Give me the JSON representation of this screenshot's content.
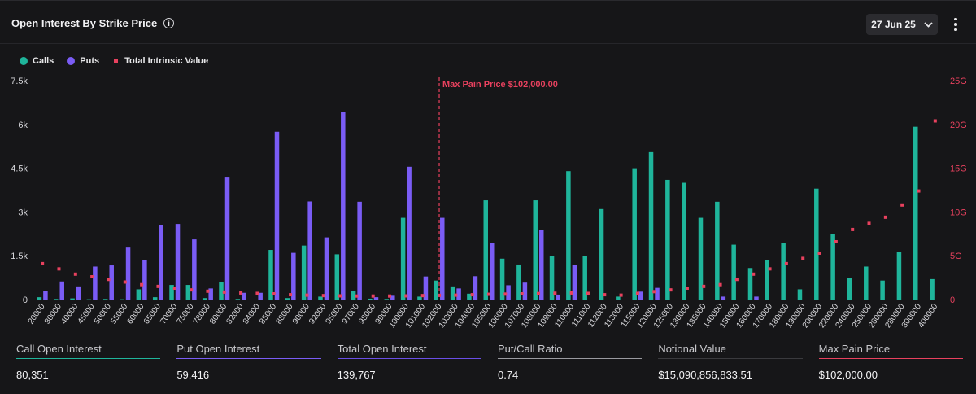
{
  "header": {
    "title": "Open Interest By Strike Price",
    "date_label": "27 Jun 25"
  },
  "legend": [
    {
      "label": "Calls",
      "color": "#1fb59b"
    },
    {
      "label": "Puts",
      "color": "#7a5cf5"
    },
    {
      "label": "Total Intrinsic Value",
      "color": "#e8415e"
    }
  ],
  "stats": [
    {
      "label": "Call Open Interest",
      "value": "80,351",
      "color": "#1fb59b"
    },
    {
      "label": "Put Open Interest",
      "value": "59,416",
      "color": "#7a5cf5"
    },
    {
      "label": "Total Open Interest",
      "value": "139,767",
      "color": "#6a4ee6"
    },
    {
      "label": "Put/Call Ratio",
      "value": "0.74",
      "color": "#9a9aa0"
    },
    {
      "label": "Notional Value",
      "value": "$15,090,856,833.51",
      "color": "#3a3a3e"
    },
    {
      "label": "Max Pain Price",
      "value": "$102,000.00",
      "color": "#e8415e"
    }
  ],
  "chart_data": {
    "type": "bar",
    "categories": [
      "20000",
      "30000",
      "40000",
      "45000",
      "50000",
      "55000",
      "60000",
      "65000",
      "70000",
      "75000",
      "78000",
      "80000",
      "82000",
      "84000",
      "85000",
      "88000",
      "90000",
      "92000",
      "95000",
      "97000",
      "98000",
      "99000",
      "100000",
      "101000",
      "102000",
      "103000",
      "104000",
      "105000",
      "106000",
      "107000",
      "108000",
      "109000",
      "110000",
      "111000",
      "112000",
      "113000",
      "115000",
      "120000",
      "125000",
      "130000",
      "135000",
      "140000",
      "150000",
      "160000",
      "170000",
      "180000",
      "190000",
      "200000",
      "220000",
      "240000",
      "250000",
      "260000",
      "280000",
      "300000",
      "400000"
    ],
    "series": [
      {
        "name": "Calls",
        "axis": "left",
        "values": [
          80,
          20,
          40,
          10,
          20,
          10,
          350,
          80,
          500,
          500,
          50,
          600,
          20,
          0,
          1700,
          50,
          1850,
          100,
          1550,
          300,
          30,
          20,
          2800,
          100,
          650,
          450,
          200,
          3400,
          1400,
          1200,
          3400,
          1500,
          4400,
          1480,
          3100,
          100,
          4500,
          5050,
          4100,
          4000,
          2800,
          3350,
          1880,
          1080,
          1340,
          1950,
          350,
          3800,
          2250,
          730,
          1130,
          650,
          1620,
          5920,
          700
        ]
      },
      {
        "name": "Puts",
        "axis": "left",
        "values": [
          300,
          620,
          450,
          1130,
          1170,
          1780,
          1340,
          2540,
          2590,
          2060,
          380,
          4180,
          230,
          230,
          5750,
          1600,
          3360,
          2130,
          6440,
          3350,
          80,
          130,
          4550,
          790,
          2800,
          380,
          800,
          1950,
          490,
          580,
          2380,
          170,
          1180,
          0,
          0,
          0,
          270,
          400,
          0,
          0,
          0,
          100,
          0,
          100,
          0,
          0,
          0,
          0,
          0,
          0,
          0,
          0,
          0,
          0,
          0
        ]
      },
      {
        "name": "Total Intrinsic Value",
        "axis": "right",
        "type": "scatter",
        "values": [
          4.1,
          3.5,
          2.9,
          2.6,
          2.3,
          2.0,
          1.7,
          1.5,
          1.3,
          1.1,
          0.95,
          0.85,
          0.75,
          0.7,
          0.65,
          0.55,
          0.5,
          0.45,
          0.42,
          0.4,
          0.4,
          0.4,
          0.42,
          0.45,
          0.48,
          0.5,
          0.55,
          0.6,
          0.62,
          0.65,
          0.68,
          0.72,
          0.75,
          0.7,
          0.55,
          0.5,
          0.7,
          0.9,
          1.1,
          1.3,
          1.5,
          1.7,
          2.3,
          2.9,
          3.5,
          4.1,
          4.7,
          5.3,
          6.6,
          8.0,
          8.7,
          9.4,
          10.8,
          12.4,
          20.4
        ]
      }
    ],
    "y_left": {
      "min": 0,
      "max": 7500,
      "ticks": [
        0,
        1500,
        3000,
        4500,
        6000,
        7500
      ],
      "tick_labels": [
        "0",
        "1.5k",
        "3k",
        "4.5k",
        "6k",
        "7.5k"
      ]
    },
    "y_right": {
      "min": 0,
      "max": 25,
      "ticks": [
        0,
        5,
        10,
        15,
        20,
        25
      ],
      "tick_labels": [
        "0",
        "5G",
        "10G",
        "15G",
        "20G",
        "25G"
      ]
    },
    "annotation": {
      "label": "Max Pain Price $102,000.00",
      "category": "102000",
      "color": "#e8415e"
    }
  }
}
